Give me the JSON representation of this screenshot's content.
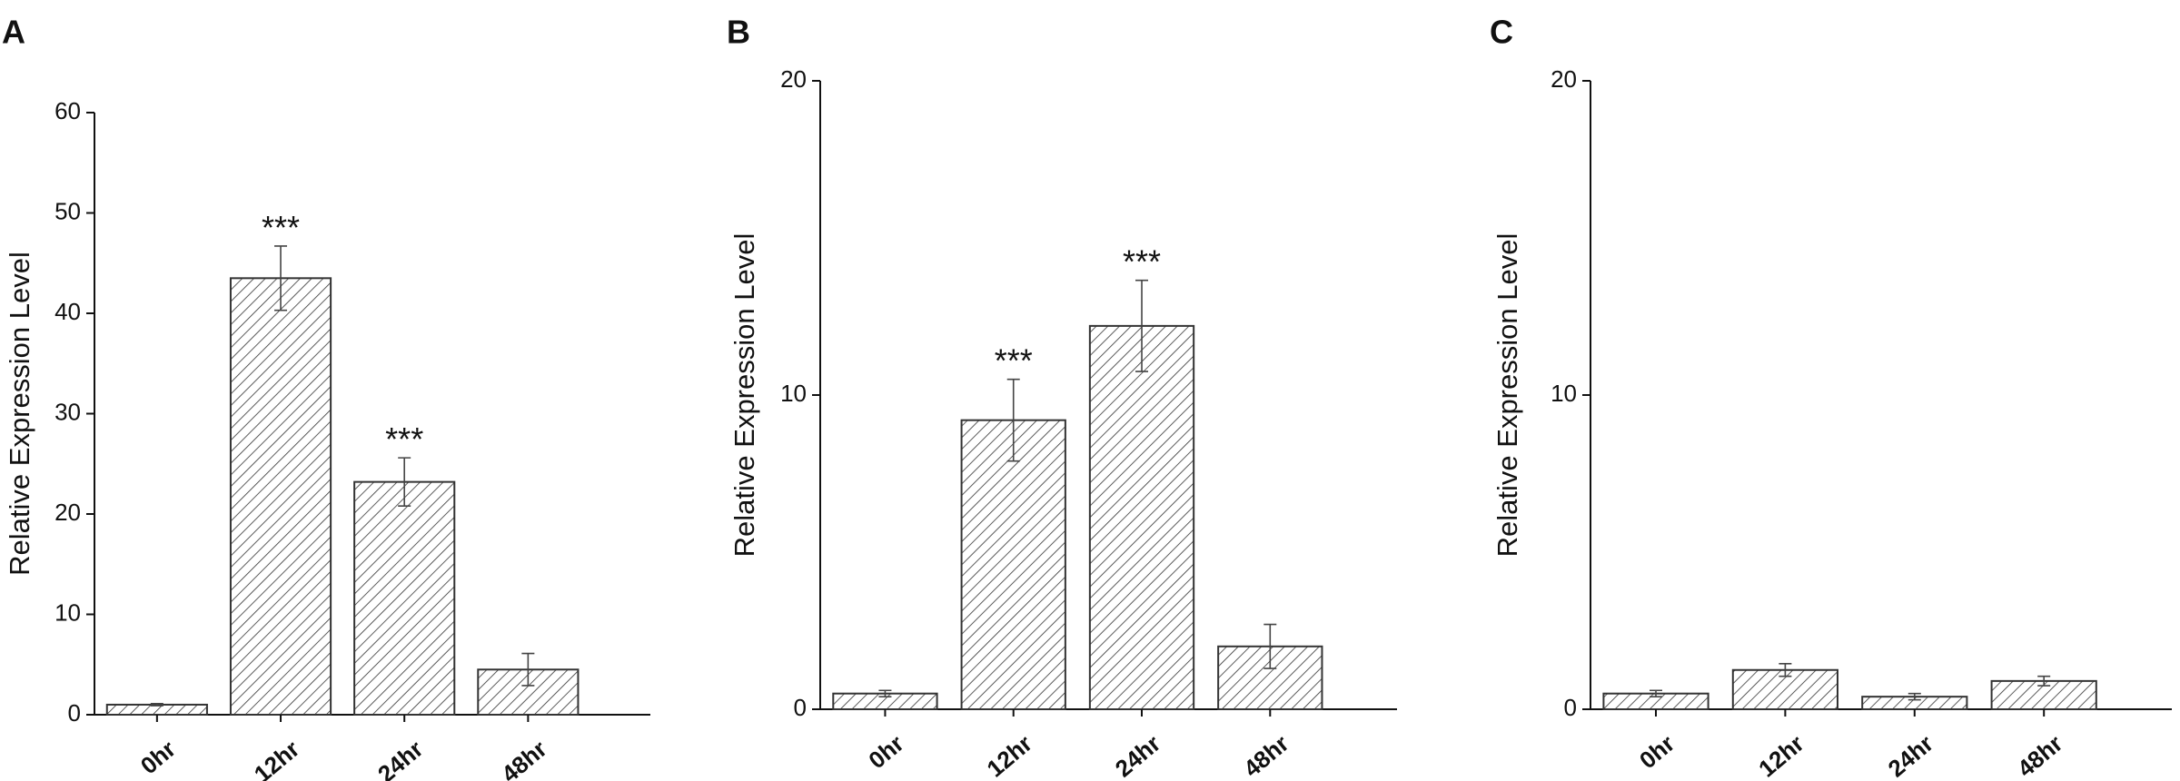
{
  "chart_data": [
    {
      "type": "bar",
      "panel": "A",
      "y_label": "Relative Expression Level",
      "categories": [
        "0hr",
        "12hr",
        "24hr",
        "48hr"
      ],
      "values": [
        1.0,
        43.5,
        23.2,
        4.5
      ],
      "errors": [
        0.1,
        3.2,
        2.4,
        1.6
      ],
      "annotations": [
        null,
        "***",
        "***",
        null
      ],
      "ylim": [
        0,
        60
      ],
      "yticks": [
        0,
        10,
        20,
        30,
        40,
        50,
        60
      ],
      "color": "#333333"
    },
    {
      "type": "bar",
      "panel": "B",
      "y_label": "Relative Expression Level",
      "categories": [
        "0hr",
        "12hr",
        "24hr",
        "48hr"
      ],
      "values": [
        0.5,
        9.2,
        12.2,
        2.0
      ],
      "errors": [
        0.1,
        1.3,
        1.45,
        0.7
      ],
      "annotations": [
        null,
        "***",
        "***",
        null
      ],
      "ylim": [
        0,
        20
      ],
      "yticks": [
        0,
        10,
        20
      ],
      "color": "#333333"
    },
    {
      "type": "bar",
      "panel": "C",
      "y_label": "Relative Expression Level",
      "categories": [
        "0hr",
        "12hr",
        "24hr",
        "48hr"
      ],
      "values": [
        0.5,
        1.25,
        0.4,
        0.9
      ],
      "errors": [
        0.1,
        0.2,
        0.1,
        0.15
      ],
      "annotations": [
        null,
        null,
        null,
        null
      ],
      "ylim": [
        0,
        20
      ],
      "yticks": [
        0,
        10,
        20
      ],
      "color": "#333333"
    }
  ]
}
